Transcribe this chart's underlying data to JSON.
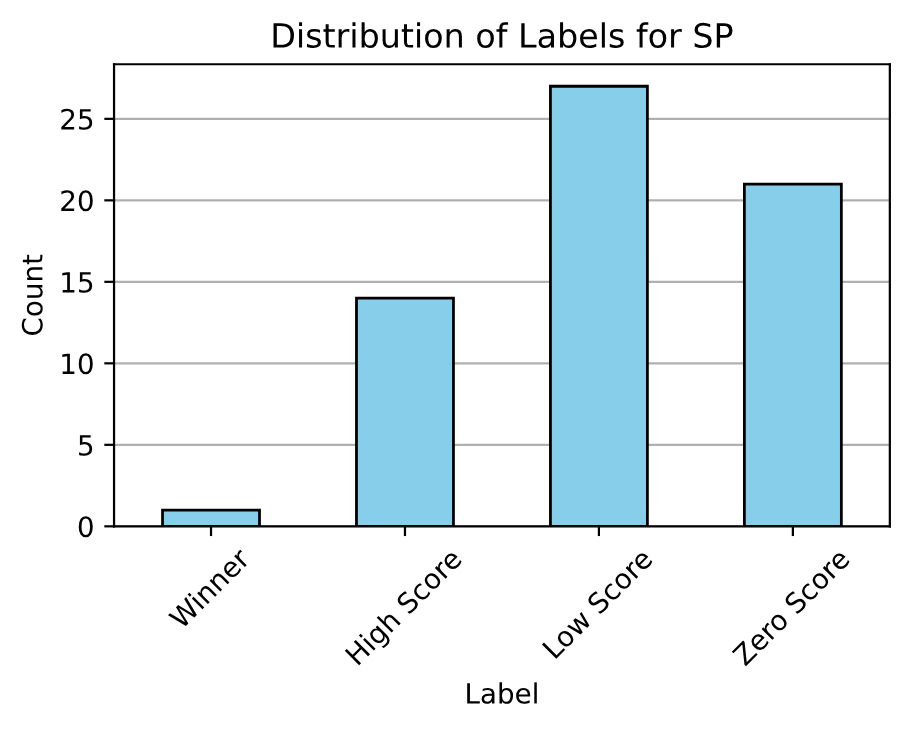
{
  "chart_data": {
    "type": "bar",
    "title": "Distribution of Labels for SP",
    "xlabel": "Label",
    "ylabel": "Count",
    "categories": [
      "Winner",
      "High Score",
      "Low Score",
      "Zero Score"
    ],
    "values": [
      1,
      14,
      27,
      21
    ],
    "color": "#87ceeb",
    "ylim": [
      0,
      28.35
    ],
    "yticks": [
      0,
      5,
      10,
      15,
      20,
      25
    ],
    "grid": "y",
    "legend": false
  }
}
